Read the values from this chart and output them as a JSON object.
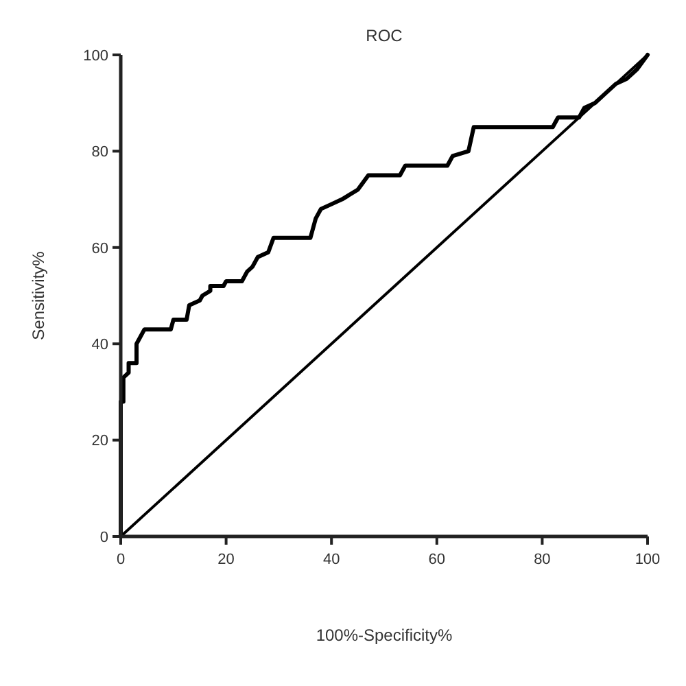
{
  "chart_data": {
    "type": "line",
    "title": "ROC",
    "xlabel": "100%-Specificity%",
    "ylabel": "Sensitivity%",
    "xlim": [
      0,
      100
    ],
    "ylim": [
      0,
      100
    ],
    "xticks": [
      0,
      20,
      40,
      60,
      80,
      100
    ],
    "yticks": [
      0,
      20,
      40,
      60,
      80,
      100
    ],
    "series": [
      {
        "color": "#000000",
        "x": [
          0,
          0,
          0.5,
          0.5,
          1.5,
          1.5,
          3,
          3,
          4.5,
          9.5,
          10,
          12.5,
          13,
          15,
          15.5,
          17,
          17,
          19.5,
          20,
          23,
          24,
          25,
          26,
          28,
          29,
          36,
          37,
          38,
          40,
          42,
          45,
          47,
          53,
          54,
          62,
          63,
          66,
          67,
          82,
          83,
          87,
          88,
          90,
          92,
          94,
          96,
          98,
          100
        ],
        "values": [
          0,
          28,
          28,
          33,
          34,
          36,
          36,
          40,
          43,
          43,
          45,
          45,
          48,
          49,
          50,
          51,
          52,
          52,
          53,
          53,
          55,
          56,
          58,
          59,
          62,
          62,
          66,
          68,
          69,
          70,
          72,
          75,
          75,
          77,
          77,
          79,
          80,
          85,
          85,
          87,
          87,
          89,
          90,
          92,
          94,
          95,
          97,
          100
        ]
      },
      {
        "color": "#000000",
        "x": [
          0,
          100
        ],
        "values": [
          0,
          100
        ]
      }
    ]
  }
}
